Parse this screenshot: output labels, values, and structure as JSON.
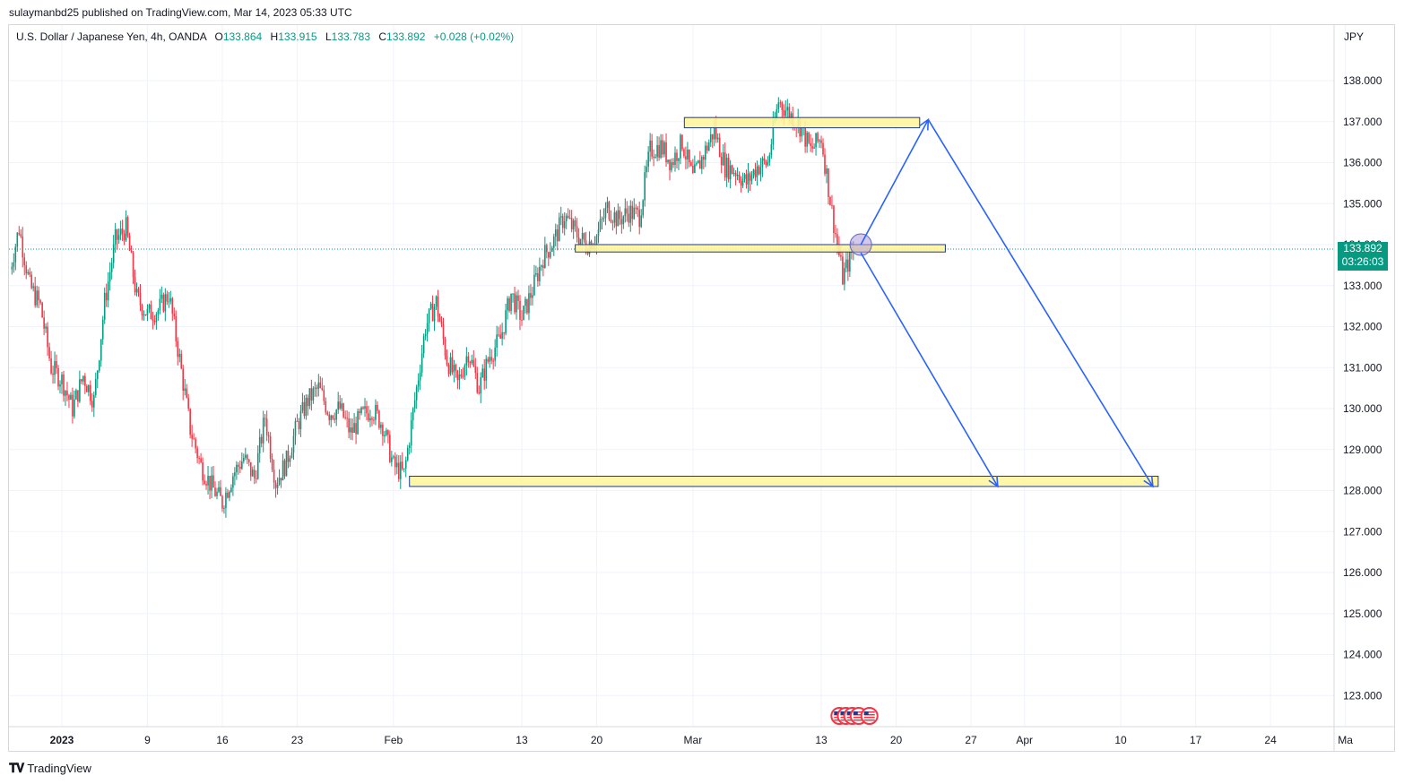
{
  "header": {
    "published": "sulaymanbd25 published on TradingView.com, Mar 14, 2023 05:33 UTC"
  },
  "legend": {
    "symbol": "U.S. Dollar / Japanese Yen, 4h, OANDA",
    "open_label": "O",
    "open": "133.864",
    "high_label": "H",
    "high": "133.915",
    "low_label": "L",
    "low": "133.783",
    "close_label": "C",
    "close": "133.892",
    "change": "+0.028 (+0.02%)"
  },
  "axis": {
    "currency": "JPY"
  },
  "price_tag": {
    "price": "133.892",
    "countdown": "03:26:03"
  },
  "brand": {
    "name": "TradingView",
    "logo": "tradingview-logo-icon"
  },
  "colors": {
    "up": "#089981",
    "down": "#f23645",
    "zone_fill": "#fff59d",
    "zone_stroke": "#1c3b8c",
    "arrow": "#2962ff"
  },
  "chart_data": {
    "type": "candlestick",
    "y_ticks": [
      "138.000",
      "137.000",
      "136.000",
      "135.000",
      "134.000",
      "133.000",
      "132.000",
      "131.000",
      "130.000",
      "129.000",
      "128.000",
      "127.000",
      "126.000",
      "125.000",
      "124.000",
      "123.000"
    ],
    "x_ticks": [
      {
        "label": "2023",
        "day": 0,
        "bold": true
      },
      {
        "label": "9",
        "day": 8
      },
      {
        "label": "16",
        "day": 15
      },
      {
        "label": "23",
        "day": 22
      },
      {
        "label": "Feb",
        "day": 31
      },
      {
        "label": "13",
        "day": 43
      },
      {
        "label": "20",
        "day": 50
      },
      {
        "label": "Mar",
        "day": 59
      },
      {
        "label": "13",
        "day": 71
      },
      {
        "label": "20",
        "day": 78
      },
      {
        "label": "27",
        "day": 85
      },
      {
        "label": "Apr",
        "day": 90
      },
      {
        "label": "10",
        "day": 99
      },
      {
        "label": "17",
        "day": 106
      },
      {
        "label": "24",
        "day": 113
      },
      {
        "label": "Ma",
        "day": 120
      }
    ],
    "ylim": [
      122.3,
      139.0
    ],
    "last_price": 133.892,
    "path": [
      [
        -5,
        133.2
      ],
      [
        -4,
        134.4
      ],
      [
        -3,
        133.0
      ],
      [
        -2,
        132.5
      ],
      [
        -1,
        131.0
      ],
      [
        0,
        130.7
      ],
      [
        1,
        130.0
      ],
      [
        2,
        130.8
      ],
      [
        3,
        130.2
      ],
      [
        4,
        132.6
      ],
      [
        5,
        134.1
      ],
      [
        6,
        134.4
      ],
      [
        7,
        132.7
      ],
      [
        8,
        132.3
      ],
      [
        9,
        132.4
      ],
      [
        10,
        132.8
      ],
      [
        11,
        131.2
      ],
      [
        12,
        129.5
      ],
      [
        13,
        128.6
      ],
      [
        14,
        128.1
      ],
      [
        15,
        127.7
      ],
      [
        16,
        128.4
      ],
      [
        17,
        128.8
      ],
      [
        18,
        128.3
      ],
      [
        19,
        129.8
      ],
      [
        20,
        128.2
      ],
      [
        21,
        128.7
      ],
      [
        22,
        129.6
      ],
      [
        23,
        130.2
      ],
      [
        24,
        130.5
      ],
      [
        25,
        129.9
      ],
      [
        26,
        130.0
      ],
      [
        27,
        129.4
      ],
      [
        28,
        129.8
      ],
      [
        29,
        130.0
      ],
      [
        30,
        129.6
      ],
      [
        31,
        128.6
      ],
      [
        32,
        128.4
      ],
      [
        33,
        130.2
      ],
      [
        34,
        132.0
      ],
      [
        35,
        132.6
      ],
      [
        36,
        131.2
      ],
      [
        37,
        130.6
      ],
      [
        38,
        131.4
      ],
      [
        39,
        130.5
      ],
      [
        40,
        131.3
      ],
      [
        41,
        131.7
      ],
      [
        42,
        132.8
      ],
      [
        43,
        132.2
      ],
      [
        44,
        132.9
      ],
      [
        45,
        133.7
      ],
      [
        46,
        134.1
      ],
      [
        47,
        134.7
      ],
      [
        48,
        134.3
      ],
      [
        49,
        134.0
      ],
      [
        50,
        134.2
      ],
      [
        51,
        134.9
      ],
      [
        52,
        134.6
      ],
      [
        53,
        134.8
      ],
      [
        54,
        134.7
      ],
      [
        55,
        136.3
      ],
      [
        56,
        136.4
      ],
      [
        57,
        136.0
      ],
      [
        58,
        136.5
      ],
      [
        59,
        135.6
      ],
      [
        60,
        136.2
      ],
      [
        61,
        136.8
      ],
      [
        62,
        135.9
      ],
      [
        63,
        135.8
      ],
      [
        64,
        135.5
      ],
      [
        65,
        135.9
      ],
      [
        66,
        136.0
      ],
      [
        67,
        137.5
      ],
      [
        68,
        137.2
      ],
      [
        69,
        136.9
      ],
      [
        70,
        136.3
      ],
      [
        71,
        136.6
      ],
      [
        72,
        134.8
      ],
      [
        73,
        133.2
      ],
      [
        74,
        133.9
      ]
    ],
    "zones": [
      {
        "d0": 58.2,
        "d1": 80.2,
        "p_top": 137.1,
        "p_bot": 136.85
      },
      {
        "d0": 48.0,
        "d1": 82.6,
        "p_top": 134.0,
        "p_bot": 133.82
      },
      {
        "d0": 32.5,
        "d1": 102.5,
        "p_top": 128.35,
        "p_bot": 128.1
      }
    ],
    "highlight_circle": {
      "day": 74.7,
      "price": 134.0
    },
    "arrows": [
      {
        "from": [
          74.7,
          134.0
        ],
        "to": [
          81.0,
          137.05
        ]
      },
      {
        "from": [
          81.0,
          137.05
        ],
        "to": [
          102.0,
          128.1
        ]
      },
      {
        "from": [
          74.7,
          133.8
        ],
        "to": [
          87.5,
          128.1
        ]
      }
    ],
    "event_flags": [
      {
        "day": 72.7
      },
      {
        "day": 73.3
      },
      {
        "day": 73.9
      },
      {
        "day": 74.5
      },
      {
        "day": 75.5
      }
    ]
  }
}
